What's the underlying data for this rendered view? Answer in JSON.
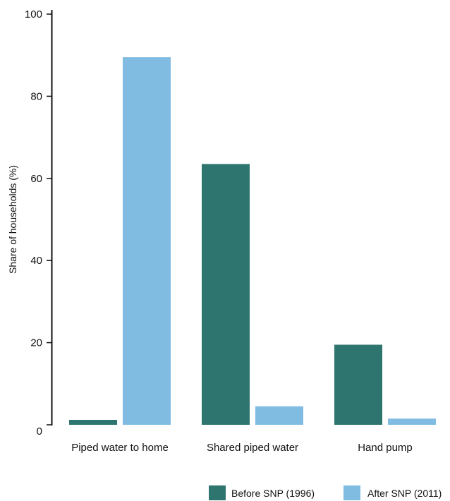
{
  "chart_data": {
    "type": "bar",
    "categories": [
      "Piped water to home",
      "Shared piped water",
      "Hand pump"
    ],
    "series": [
      {
        "name": "Before SNP (1996)",
        "values": [
          1.2,
          63.5,
          19.5
        ],
        "color": "#2e7570"
      },
      {
        "name": "After SNP (2011)",
        "values": [
          89.5,
          4.5,
          1.5
        ],
        "color": "#80bce2"
      }
    ],
    "ylabel": "Share of households (%)",
    "xlabel": "",
    "ylim": [
      0,
      100
    ],
    "yticks": [
      0,
      20,
      40,
      60,
      80,
      100
    ],
    "ytick_labels": [
      "0",
      "20",
      "40",
      "60",
      "80",
      "100"
    ],
    "grid": false,
    "legend_position": "bottom-right"
  }
}
